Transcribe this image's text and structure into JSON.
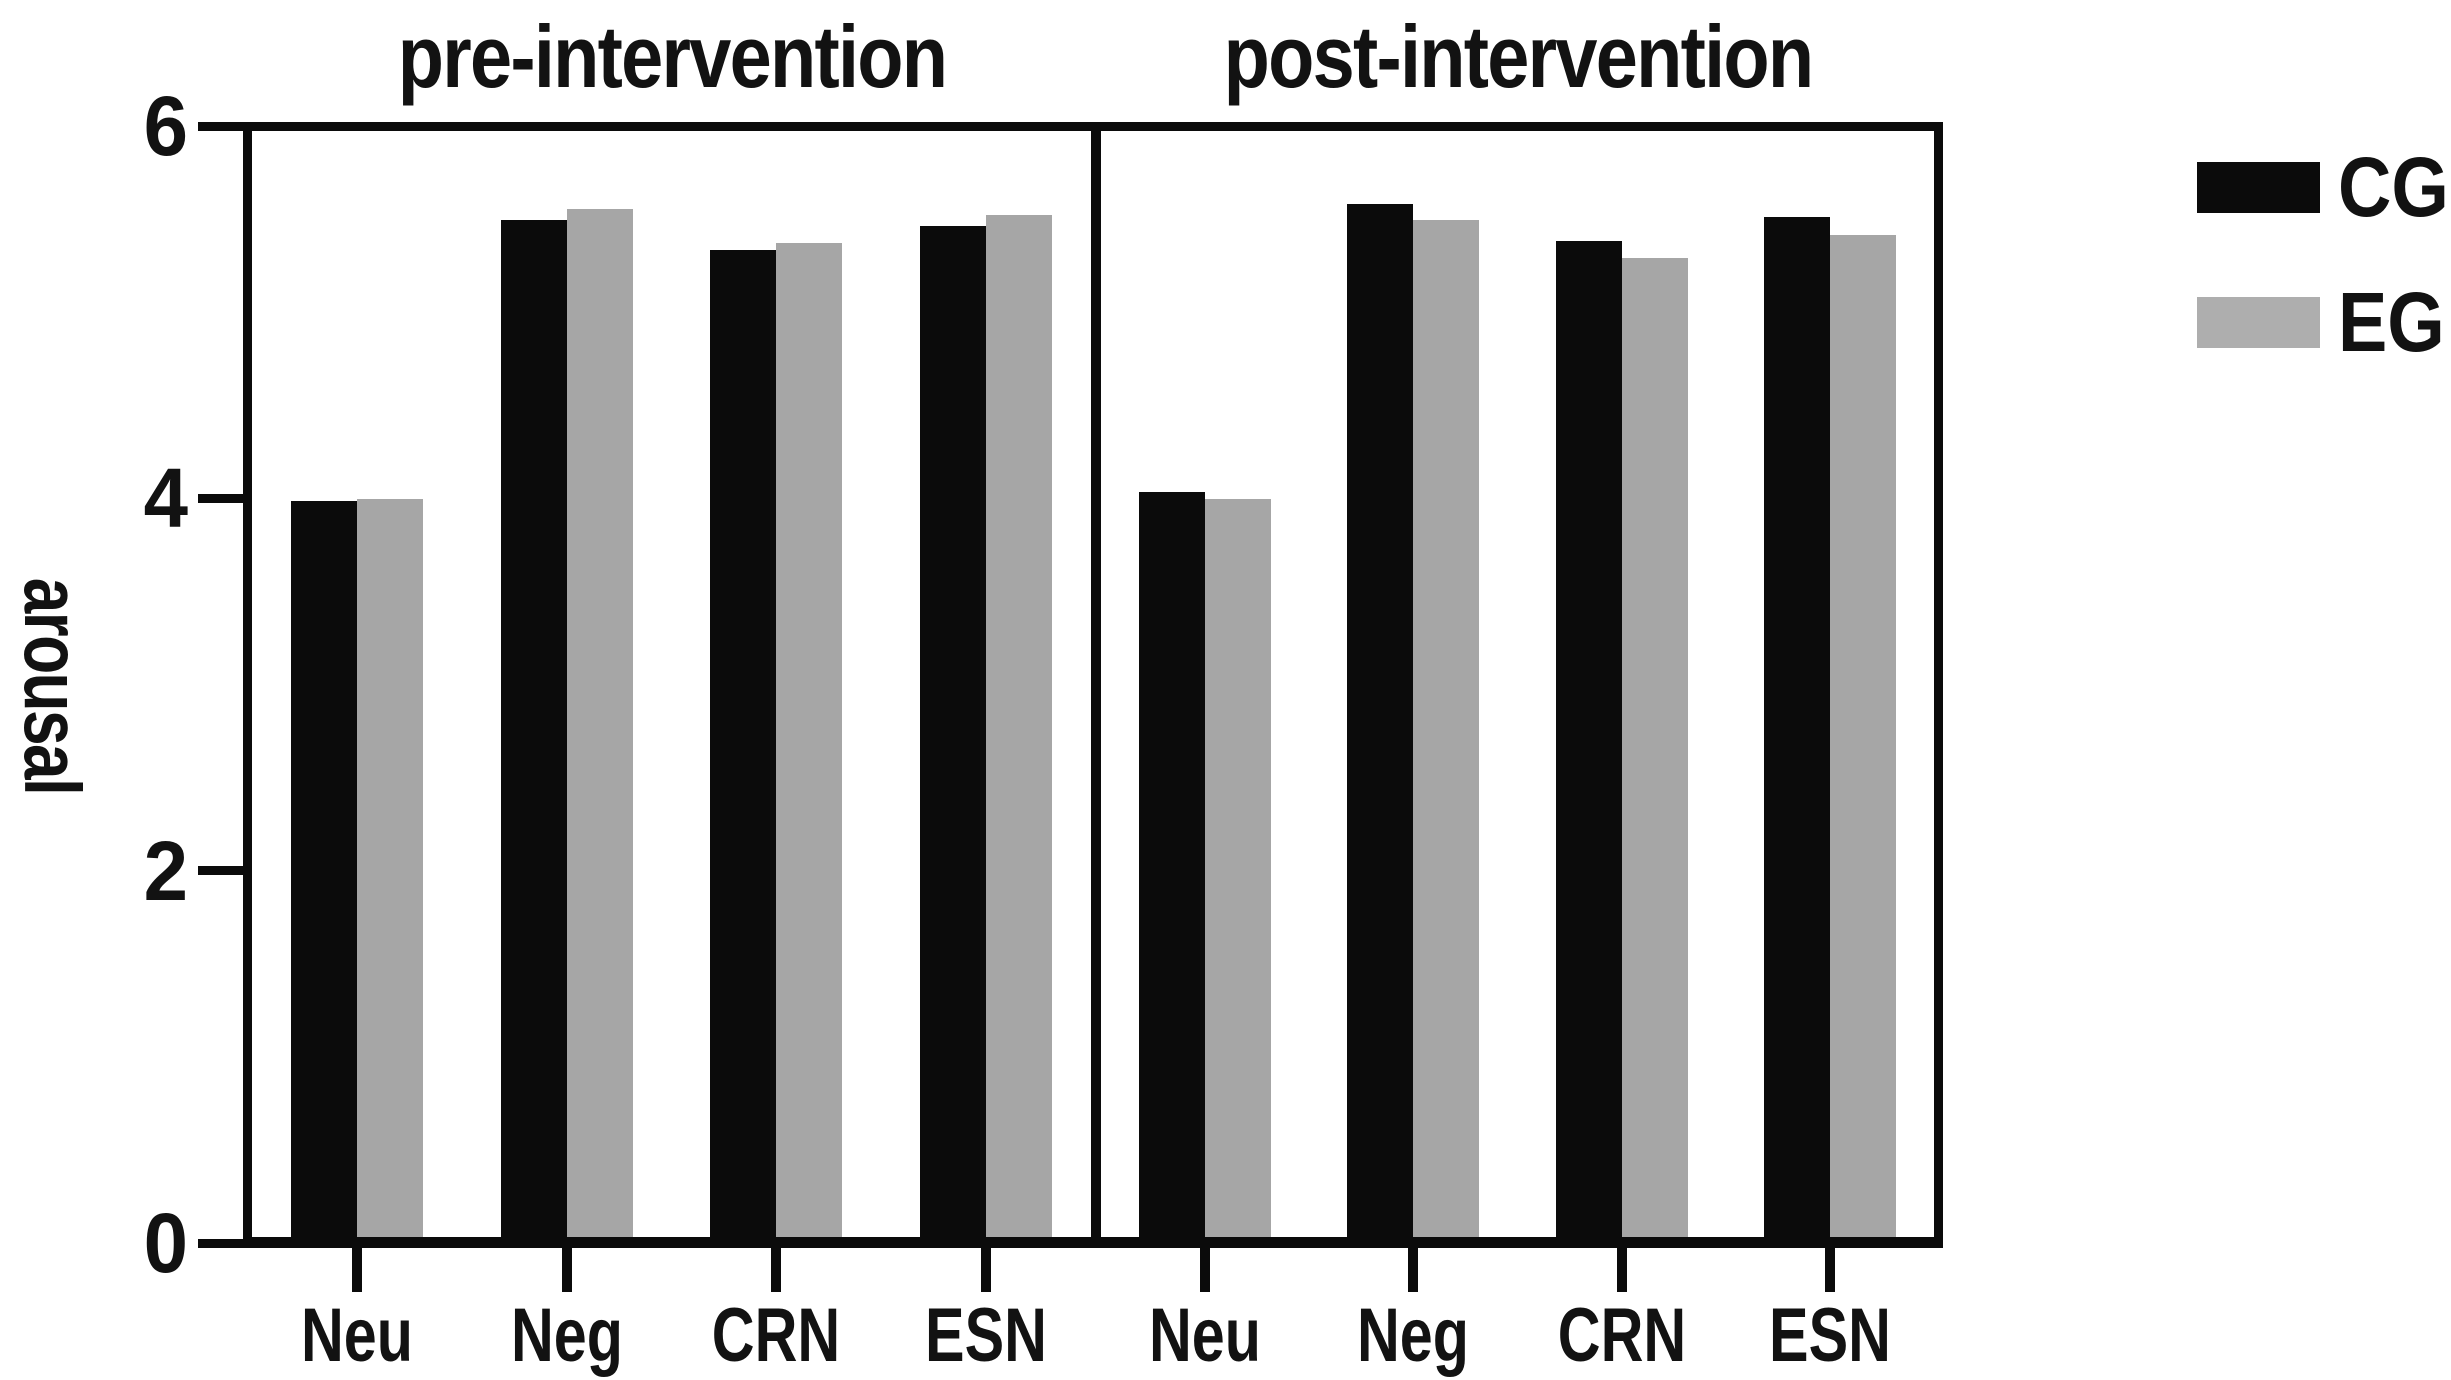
{
  "figure": {
    "kind": "grouped bar chart, two facet panels, grayscale scientific figure"
  },
  "chart_data": {
    "type": "bar",
    "title": "",
    "ylabel": "arousal",
    "ylim": [
      0,
      6
    ],
    "y_ticks": [
      0,
      2,
      4,
      6
    ],
    "grid": "off",
    "legend_position": "top-right-outside",
    "categories": [
      "Neu",
      "Neg",
      "CRN",
      "ESN"
    ],
    "legend": [
      {
        "label": "CG",
        "color": "#0b0b0b"
      },
      {
        "label": "EG",
        "color": "#aeaeae"
      }
    ],
    "series_colors": {
      "CG": "#0b0b0b",
      "EG": "#a6a6a6"
    },
    "panels": [
      {
        "title": "pre-intervention",
        "categories": [
          "Neu",
          "Neg",
          "CRN",
          "ESN"
        ],
        "series": [
          {
            "name": "CG",
            "values": [
              3.96,
              5.47,
              5.31,
              5.44
            ]
          },
          {
            "name": "EG",
            "values": [
              3.97,
              5.53,
              5.35,
              5.5
            ]
          }
        ]
      },
      {
        "title": "post-intervention",
        "categories": [
          "Neu",
          "Neg",
          "CRN",
          "ESN"
        ],
        "series": [
          {
            "name": "CG",
            "values": [
              4.01,
              5.56,
              5.36,
              5.49
            ]
          },
          {
            "name": "EG",
            "values": [
              3.97,
              5.47,
              5.27,
              5.39
            ]
          }
        ]
      }
    ]
  }
}
